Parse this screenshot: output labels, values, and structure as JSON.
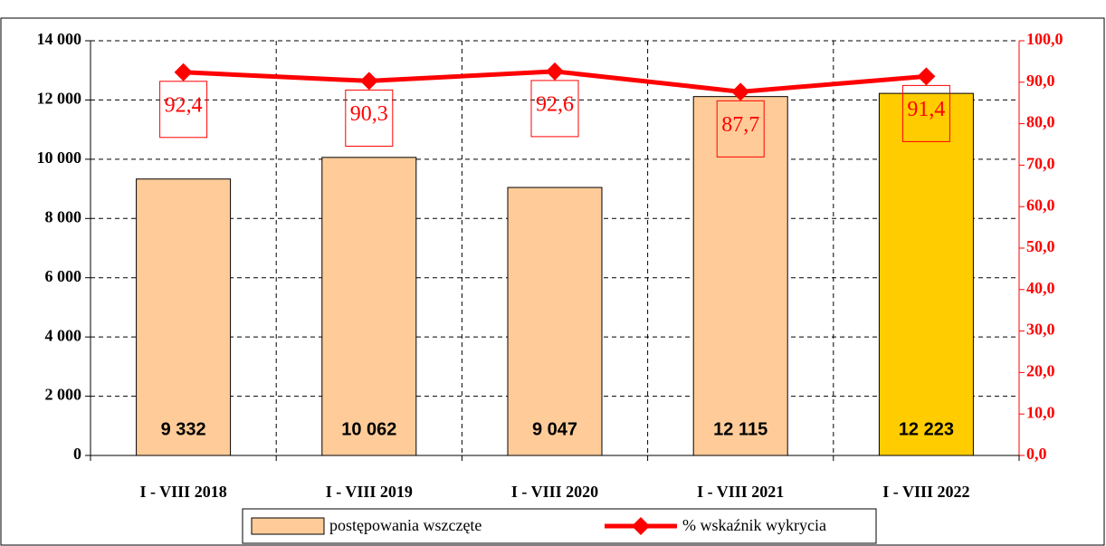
{
  "chart_data": {
    "type": "bar",
    "categories": [
      "I - VIII 2018",
      "I - VIII 2019",
      "I - VIII 2020",
      "I - VIII 2021",
      "I - VIII 2022"
    ],
    "series": [
      {
        "name": "postępowania wszczęte",
        "colors": [
          "#FFCC99",
          "#FFCC99",
          "#FFCC99",
          "#FFCC99",
          "#FFCC00"
        ],
        "color": "#FFCC99",
        "values": [
          9332,
          10062,
          9047,
          12115,
          12223
        ],
        "value_labels": [
          "9 332",
          "10 062",
          "9 047",
          "12 115",
          "12 223"
        ]
      },
      {
        "name": "% wskaźnik wykrycia",
        "type": "line",
        "axis": "y2",
        "color": "#FF0000",
        "values": [
          92.4,
          90.3,
          92.6,
          87.7,
          91.4
        ],
        "value_labels": [
          "92,4",
          "90,3",
          "92,6",
          "87,7",
          "91,4"
        ]
      }
    ],
    "ylim": [
      0,
      14000
    ],
    "yticks": [
      0,
      {
        "value": 2000,
        "label": "2 000"
      },
      {
        "value": 4000,
        "label": "4 000"
      },
      {
        "value": 6000,
        "label": "6 000"
      },
      {
        "value": 8000,
        "label": "8 000"
      },
      {
        "value": 10000,
        "label": "10 000"
      },
      {
        "value": 12000,
        "label": "12 000"
      },
      {
        "value": 14000,
        "label": "14 000"
      }
    ],
    "y2lim": [
      0,
      100
    ],
    "y2ticks": [
      {
        "value": 0,
        "label": "0,0"
      },
      {
        "value": 10,
        "label": "10,0"
      },
      {
        "value": 20,
        "label": "20,0"
      },
      {
        "value": 30,
        "label": "30,0"
      },
      {
        "value": 40,
        "label": "40,0"
      },
      {
        "value": 50,
        "label": "50,0"
      },
      {
        "value": 60,
        "label": "60,0"
      },
      {
        "value": 70,
        "label": "70,0"
      },
      {
        "value": 80,
        "label": "80,0"
      },
      {
        "value": 90,
        "label": "90,0"
      },
      {
        "value": 100,
        "label": "100,0"
      }
    ],
    "grid": true
  }
}
